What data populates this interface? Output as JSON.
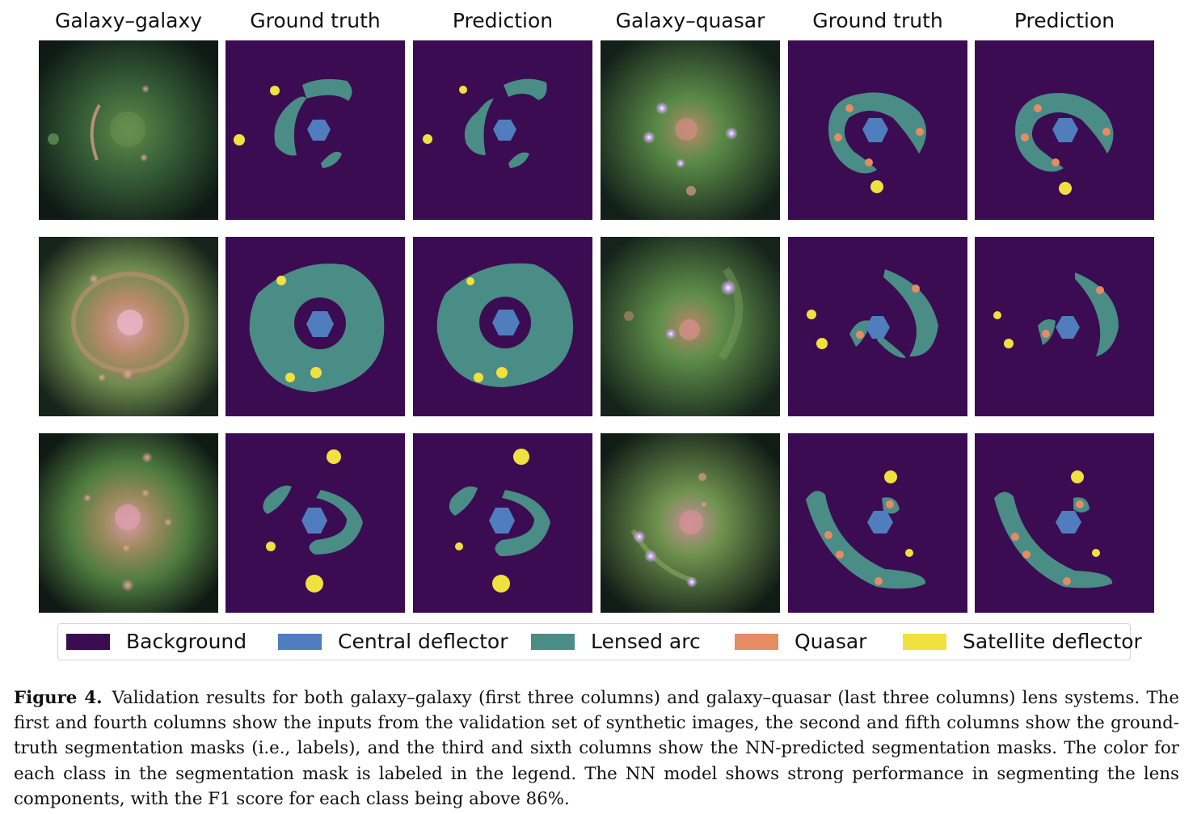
{
  "column_titles": [
    "Galaxy–galaxy",
    "Ground truth",
    "Prediction",
    "Galaxy–quasar",
    "Ground truth",
    "Prediction"
  ],
  "colors": {
    "background": "#3b0c52",
    "central_deflector": "#4f7dbd",
    "lensed_arc": "#4a8c86",
    "quasar": "#e58c63",
    "satellite_deflector": "#f1e13f",
    "image_bg": "#0d1412",
    "image_glow": "#3f6e3b",
    "image_core": "#d58a8a"
  },
  "legend": [
    {
      "label": "Background",
      "color_key": "background"
    },
    {
      "label": "Central deflector",
      "color_key": "central_deflector"
    },
    {
      "label": "Lensed arc",
      "color_key": "lensed_arc"
    },
    {
      "label": "Quasar",
      "color_key": "quasar"
    },
    {
      "label": "Satellite deflector",
      "color_key": "satellite_deflector"
    }
  ],
  "caption": {
    "label": "Figure 4.",
    "text": "Validation results for both galaxy–galaxy (first three columns) and galaxy–quasar (last three columns) lens systems. The first and fourth columns show the inputs from the validation set of synthetic images, the second and fifth columns show the ground-truth segmentation masks (i.e., labels), and the third and sixth columns show the NN-predicted segmentation masks. The color for each class in the segmentation mask is labeled in the legend. The NN model shows strong performance in segmenting the lens components, with the F1 score for each class being above 86%."
  }
}
